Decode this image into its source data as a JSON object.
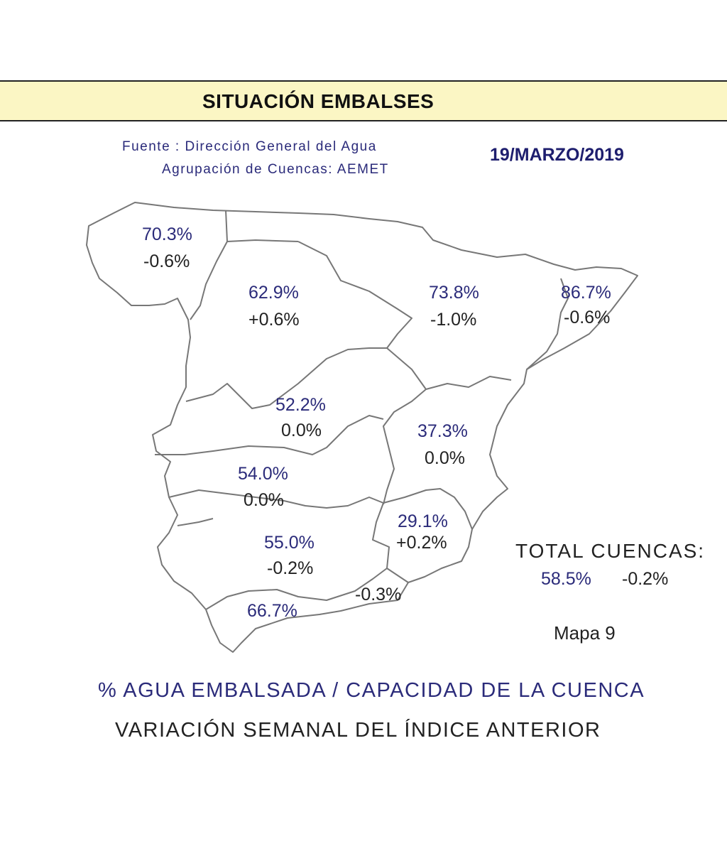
{
  "header": {
    "title": "SITUACIÓN EMBALSES",
    "source_line1": "Fuente : Dirección General del Agua",
    "source_line2": "Agrupación de Cuencas: AEMET",
    "date": "19/MARZO/2019"
  },
  "regions": [
    {
      "pct": "70.3%",
      "var": "-0.6%"
    },
    {
      "pct": "62.9%",
      "var": "+0.6%"
    },
    {
      "pct": "73.8%",
      "var": "-1.0%"
    },
    {
      "pct": "86.7%",
      "var": "-0.6%"
    },
    {
      "pct": "52.2%",
      "var": "0.0%"
    },
    {
      "pct": "37.3%",
      "var": "0.0%"
    },
    {
      "pct": "54.0%",
      "var": "0.0%"
    },
    {
      "pct": "29.1%",
      "var": "+0.2%"
    },
    {
      "pct": "55.0%",
      "var": "-0.2%"
    },
    {
      "pct": "",
      "var": "-0.3%"
    },
    {
      "pct": "66.7%",
      "var": ""
    }
  ],
  "total": {
    "title": "TOTAL CUENCAS:",
    "pct": "58.5%",
    "var": "-0.2%"
  },
  "map_number": "Mapa 9",
  "legend": {
    "line1": "% AGUA EMBALSADA / CAPACIDAD DE LA CUENCA",
    "line2": "VARIACIÓN SEMANAL DEL ÍNDICE ANTERIOR"
  },
  "colors": {
    "banner": "#fbf6c4",
    "percent_text": "#2b2b7a",
    "border": "#777777"
  }
}
